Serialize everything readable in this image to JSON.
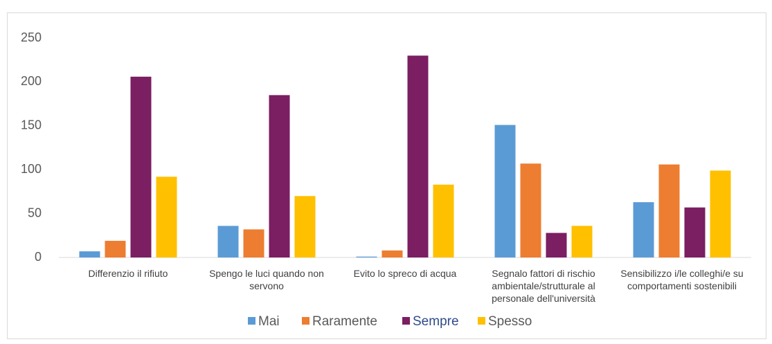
{
  "chart_data": {
    "type": "bar",
    "categories": [
      "Differenzio il rifiuto",
      "Spengo le luci quando non servono",
      "Evito lo spreco di acqua",
      "Segnalo fattori di rischio ambientale/strutturale al personale dell'università",
      "Sensibilizzo i/le colleghi/e su comportamenti sostenibili"
    ],
    "series": [
      {
        "name": "Mai",
        "color": "#5b9bd5",
        "values": [
          7,
          36,
          1,
          151,
          63
        ]
      },
      {
        "name": "Raramente",
        "color": "#ed7d31",
        "values": [
          19,
          32,
          8,
          107,
          106
        ]
      },
      {
        "name": "Sempre",
        "color": "#7b1e62",
        "values": [
          206,
          185,
          230,
          28,
          57
        ]
      },
      {
        "name": "Spesso",
        "color": "#ffc000",
        "values": [
          92,
          70,
          83,
          36,
          99
        ]
      }
    ],
    "ylim": [
      0,
      250
    ],
    "yticks": [
      0,
      50,
      100,
      150,
      200,
      250
    ],
    "grid": false,
    "legend": "bottom"
  }
}
